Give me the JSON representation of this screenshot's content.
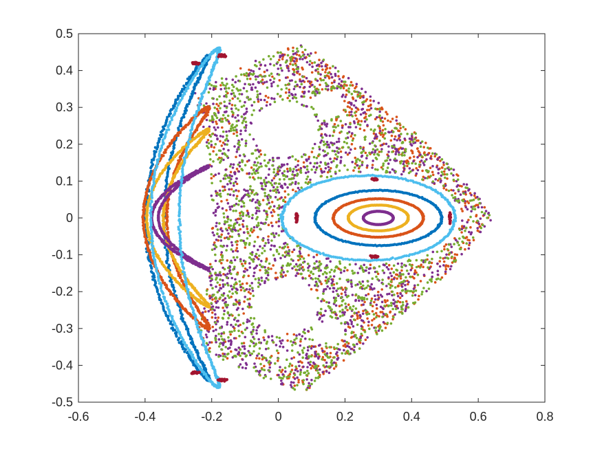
{
  "chart_data": {
    "type": "scatter",
    "title": "",
    "xlabel": "",
    "ylabel": "",
    "xlim": [
      -0.6,
      0.8
    ],
    "ylim": [
      -0.5,
      0.5
    ],
    "xticks": [
      -0.6,
      -0.4,
      -0.2,
      0,
      0.2,
      0.4,
      0.6,
      0.8
    ],
    "yticks": [
      -0.5,
      -0.4,
      -0.3,
      -0.2,
      -0.1,
      0,
      0.1,
      0.2,
      0.3,
      0.4,
      0.5
    ],
    "xtick_labels": [
      "-0.6",
      "-0.4",
      "-0.2",
      "0",
      "0.2",
      "0.4",
      "0.6",
      "0.8"
    ],
    "ytick_labels": [
      "-0.5",
      "-0.4",
      "-0.3",
      "-0.2",
      "-0.1",
      "0",
      "0.1",
      "0.2",
      "0.3",
      "0.4",
      "0.5"
    ],
    "grid": false,
    "legend": "none",
    "description_of_data": "Poincare-section style scatter: nested orbits around (0.3, 0) and around (-0.36, 0), with a chaotic sea filling a triangular region.",
    "series": [
      {
        "color": "#0072BD",
        "orbits": [
          {
            "kind": "ellipse",
            "cx": 0.3,
            "cy": 0.0,
            "rx": 0.19,
            "ry": 0.075
          },
          {
            "kind": "crescent",
            "cx": -0.36,
            "cy": 0.0,
            "rx": 0.055,
            "ry": 0.44,
            "thick": 0.02
          }
        ]
      },
      {
        "color": "#D95319",
        "orbits": [
          {
            "kind": "ellipse",
            "cx": 0.3,
            "cy": 0.0,
            "rx": 0.135,
            "ry": 0.052
          },
          {
            "kind": "crescent",
            "cx": -0.36,
            "cy": 0.0,
            "rx": 0.07,
            "ry": 0.3,
            "thick": 0.012
          },
          {
            "kind": "chaos_outer"
          }
        ]
      },
      {
        "color": "#EDB120",
        "orbits": [
          {
            "kind": "ellipse",
            "cx": 0.3,
            "cy": 0.0,
            "rx": 0.09,
            "ry": 0.035
          },
          {
            "kind": "crescent",
            "cx": -0.36,
            "cy": 0.0,
            "rx": 0.05,
            "ry": 0.24,
            "thick": 0.01
          }
        ]
      },
      {
        "color": "#7E2F8E",
        "orbits": [
          {
            "kind": "ellipse",
            "cx": 0.3,
            "cy": 0.0,
            "rx": 0.045,
            "ry": 0.018
          },
          {
            "kind": "crescent",
            "cx": -0.36,
            "cy": 0.0,
            "rx": 0.02,
            "ry": 0.14,
            "thick": 0.006
          },
          {
            "kind": "chaos_inner"
          }
        ]
      },
      {
        "color": "#77AC30",
        "orbits": [
          {
            "kind": "chaos_inner"
          }
        ]
      },
      {
        "color": "#4DBEEE",
        "orbits": [
          {
            "kind": "ellipse",
            "cx": 0.27,
            "cy": 0.0,
            "rx": 0.26,
            "ry": 0.115
          },
          {
            "kind": "crescent",
            "cx": -0.33,
            "cy": 0.0,
            "rx": 0.085,
            "ry": 0.46,
            "thick": 0.014
          }
        ]
      },
      {
        "color": "#A2142F",
        "orbits": [
          {
            "kind": "islands",
            "points": [
              [
                0.29,
                0.105
              ],
              [
                0.29,
                -0.105
              ],
              [
                0.055,
                0.0
              ],
              [
                0.515,
                0.0
              ]
            ]
          },
          {
            "kind": "islands",
            "points": [
              [
                -0.25,
                0.42
              ],
              [
                -0.25,
                -0.42
              ],
              [
                -0.17,
                0.44
              ],
              [
                -0.17,
                -0.44
              ]
            ]
          }
        ]
      }
    ]
  }
}
